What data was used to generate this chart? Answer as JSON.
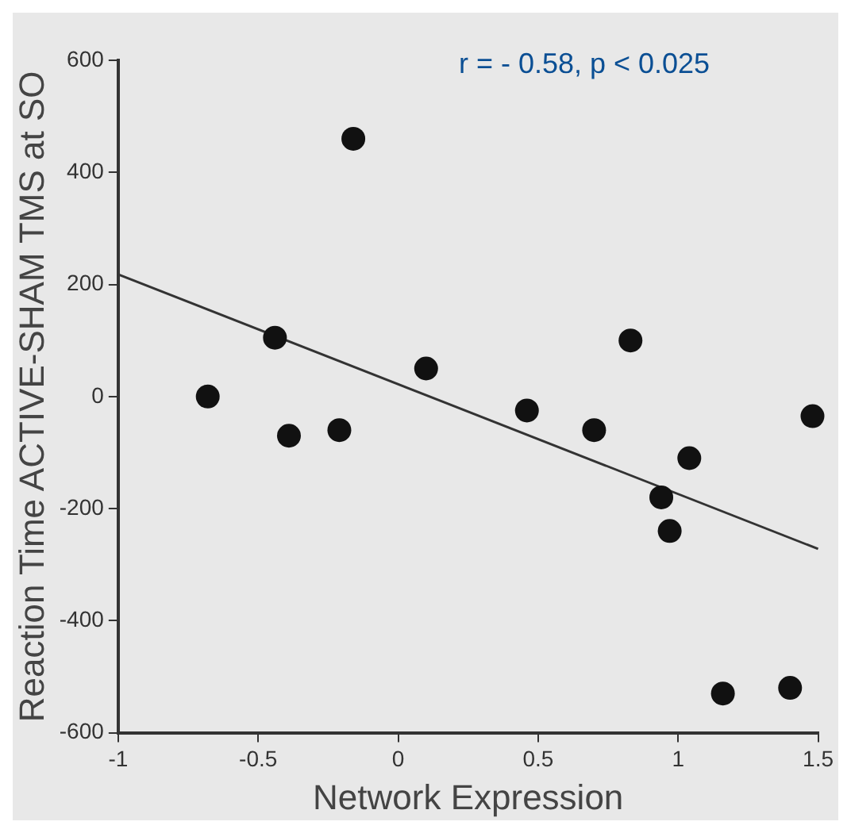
{
  "chart_data": {
    "type": "scatter",
    "xlabel": "Network Expression",
    "ylabel": "Reaction Time ACTIVE-SHAM TMS at SO",
    "annotations": [
      "r = - 0.58, p < 0.025"
    ],
    "xlim": [
      -1,
      1.5
    ],
    "xticks": [
      -1,
      -0.5,
      0,
      0.5,
      1,
      1.5
    ],
    "ylim": [
      -600,
      600
    ],
    "yticks": [
      -600,
      -400,
      -200,
      0,
      200,
      400,
      600
    ],
    "grid": false,
    "legend": false,
    "marker": "circle",
    "series": [
      {
        "color": "#111111",
        "x": [
          -0.68,
          -0.44,
          -0.39,
          -0.21,
          -0.16,
          0.1,
          0.46,
          0.7,
          0.83,
          0.94,
          0.97,
          1.04,
          1.16,
          1.4,
          1.48
        ],
        "values": [
          0,
          105,
          -70,
          -60,
          460,
          50,
          -25,
          -60,
          100,
          -180,
          -240,
          -110,
          -530,
          -520,
          -35
        ]
      },
      {
        "type": "line",
        "color": "#333333",
        "x": [
          -1,
          1.5
        ],
        "values": [
          218,
          -272
        ],
        "marker": "none"
      }
    ]
  }
}
